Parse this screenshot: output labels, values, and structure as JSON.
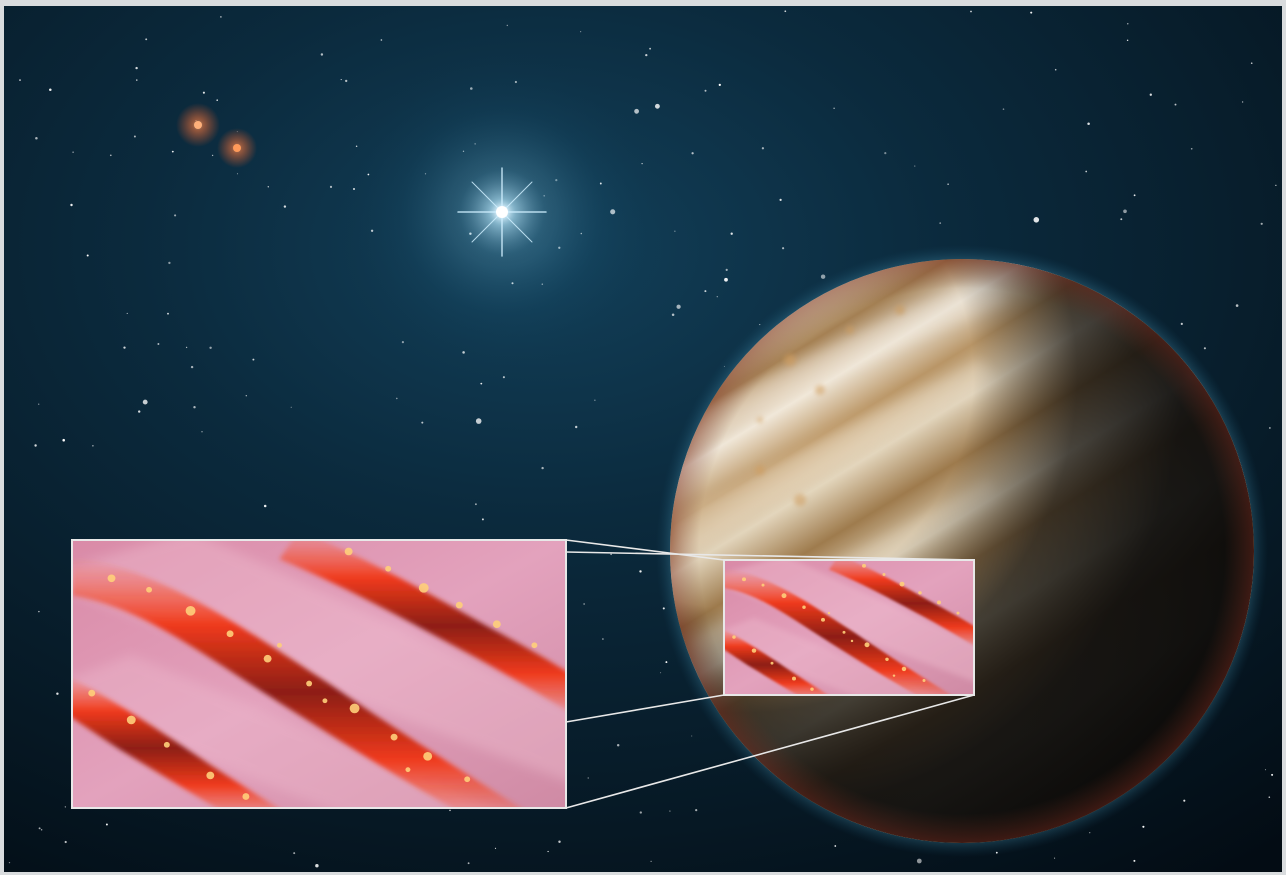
{
  "scene": {
    "subject": "planet-with-atmosphere-closeup",
    "colors": {
      "space_top": "#0b2a3d",
      "space_mid": "#08202f",
      "space_bottom": "#030c14",
      "frame_border": "#d9dcde",
      "blue_star": "#dff4ff",
      "red_star": "#ff7a3c",
      "planet_light": "#efe6d6",
      "planet_band": "#b99566",
      "planet_dark": "#1a1a1a",
      "atmosphere_glow": "#6cc7e6",
      "cloud_pink": "#d99bb3",
      "cloud_red": "#e23a1f",
      "cloud_spark": "#ffcf7a",
      "inset_border": "#e8e8e8"
    },
    "objects": [
      "blue-star",
      "red-binary-stars",
      "gas-giant-planet",
      "zoom-box-on-planet",
      "enlarged-cloud-inset",
      "zoom-connector-lines",
      "starfield"
    ]
  }
}
